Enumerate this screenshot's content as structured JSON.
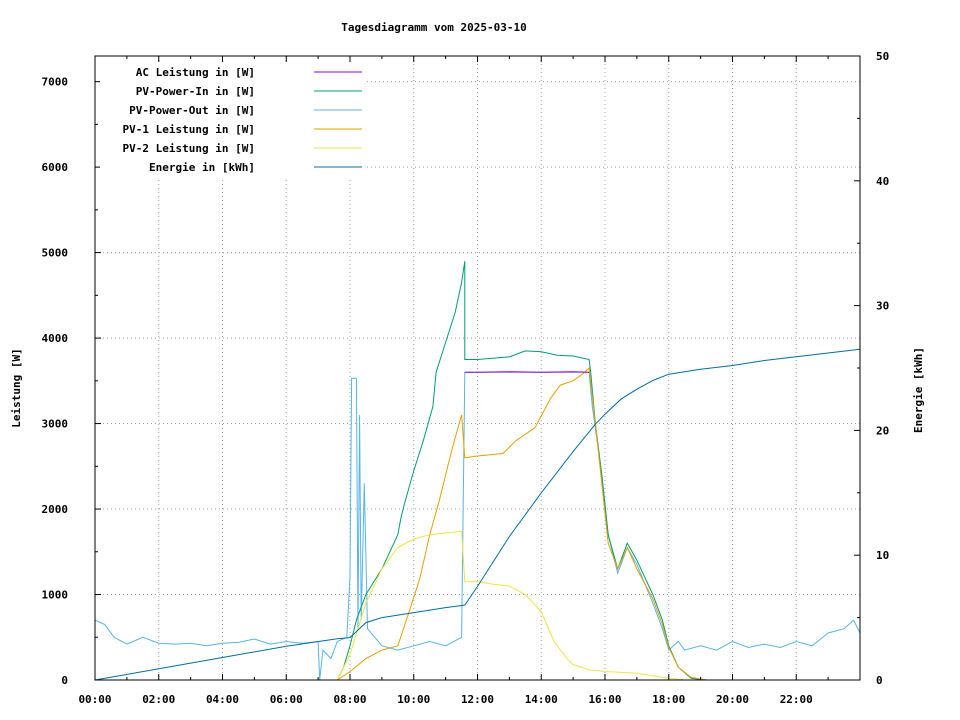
{
  "chart_data": {
    "type": "line",
    "title": "Tagesdiagramm vom 2025-03-10",
    "xlabel": "",
    "ylabel": "Leistung [W]",
    "y2label": "Energie [kWh]",
    "xlim": [
      0,
      24
    ],
    "ylim": [
      0,
      7300
    ],
    "y2lim": [
      0,
      50
    ],
    "grid": true,
    "legend_position": "top-left",
    "x_tick_labels": [
      "00:00",
      "02:00",
      "04:00",
      "06:00",
      "08:00",
      "10:00",
      "12:00",
      "14:00",
      "16:00",
      "18:00",
      "20:00",
      "22:00"
    ],
    "y_tick_labels": [
      "0",
      "1000",
      "2000",
      "3000",
      "4000",
      "5000",
      "6000",
      "7000"
    ],
    "y2_tick_labels": [
      "0",
      "10",
      "20",
      "30",
      "40",
      "50"
    ],
    "series": [
      {
        "name": "AC Leistung in [W]",
        "axis": "y1",
        "color": "#9400d3",
        "points": [
          [
            11.6,
            3600
          ],
          [
            12.0,
            3600
          ],
          [
            13.0,
            3605
          ],
          [
            14.0,
            3600
          ],
          [
            15.0,
            3605
          ],
          [
            15.5,
            3600
          ]
        ]
      },
      {
        "name": "PV-Power-In in [W]",
        "axis": "y1",
        "color": "#009e73",
        "points": [
          [
            7.6,
            0
          ],
          [
            7.8,
            150
          ],
          [
            8.0,
            400
          ],
          [
            8.2,
            700
          ],
          [
            8.5,
            1000
          ],
          [
            9.0,
            1300
          ],
          [
            9.5,
            1700
          ],
          [
            9.6,
            1900
          ],
          [
            9.7,
            2050
          ],
          [
            10.0,
            2450
          ],
          [
            10.3,
            2800
          ],
          [
            10.6,
            3200
          ],
          [
            10.7,
            3600
          ],
          [
            11.0,
            3950
          ],
          [
            11.3,
            4300
          ],
          [
            11.5,
            4650
          ],
          [
            11.6,
            4900
          ],
          [
            11.6,
            3750
          ],
          [
            12.0,
            3750
          ],
          [
            13.0,
            3780
          ],
          [
            13.5,
            3850
          ],
          [
            14.0,
            3840
          ],
          [
            14.5,
            3800
          ],
          [
            15.0,
            3790
          ],
          [
            15.5,
            3750
          ],
          [
            15.55,
            3600
          ],
          [
            15.7,
            3000
          ],
          [
            15.9,
            2400
          ],
          [
            16.1,
            1700
          ],
          [
            16.4,
            1300
          ],
          [
            16.7,
            1600
          ],
          [
            17.0,
            1400
          ],
          [
            17.5,
            1000
          ],
          [
            17.8,
            700
          ],
          [
            18.0,
            400
          ],
          [
            18.3,
            150
          ],
          [
            18.7,
            20
          ],
          [
            19.2,
            0
          ]
        ]
      },
      {
        "name": "PV-Power-Out in [W]",
        "axis": "y1",
        "color": "#56b4e9",
        "points": [
          [
            0,
            700
          ],
          [
            0.3,
            650
          ],
          [
            0.6,
            500
          ],
          [
            1.0,
            420
          ],
          [
            1.5,
            500
          ],
          [
            2.0,
            430
          ],
          [
            2.5,
            420
          ],
          [
            3.0,
            430
          ],
          [
            3.5,
            400
          ],
          [
            4.0,
            430
          ],
          [
            4.5,
            440
          ],
          [
            5.0,
            480
          ],
          [
            5.5,
            420
          ],
          [
            6.0,
            450
          ],
          [
            6.5,
            430
          ],
          [
            7.0,
            450
          ],
          [
            7.05,
            0
          ],
          [
            7.15,
            350
          ],
          [
            7.4,
            250
          ],
          [
            7.6,
            450
          ],
          [
            7.9,
            500
          ],
          [
            8.0,
            1200
          ],
          [
            8.05,
            3530
          ],
          [
            8.2,
            3530
          ],
          [
            8.25,
            600
          ],
          [
            8.3,
            3100
          ],
          [
            8.35,
            700
          ],
          [
            8.45,
            2300
          ],
          [
            8.55,
            600
          ],
          [
            9.0,
            400
          ],
          [
            9.5,
            350
          ],
          [
            10.0,
            400
          ],
          [
            10.5,
            450
          ],
          [
            11.0,
            400
          ],
          [
            11.5,
            500
          ],
          [
            11.6,
            3600
          ],
          [
            12.0,
            3600
          ],
          [
            13.0,
            3600
          ],
          [
            14.0,
            3600
          ],
          [
            15.0,
            3600
          ],
          [
            15.5,
            3600
          ],
          [
            15.6,
            3200
          ],
          [
            15.9,
            2400
          ],
          [
            16.1,
            1700
          ],
          [
            16.4,
            1250
          ],
          [
            16.7,
            1550
          ],
          [
            17.0,
            1350
          ],
          [
            17.5,
            900
          ],
          [
            17.8,
            600
          ],
          [
            18.0,
            350
          ],
          [
            18.3,
            450
          ],
          [
            18.5,
            350
          ],
          [
            19.0,
            400
          ],
          [
            19.5,
            350
          ],
          [
            20.0,
            450
          ],
          [
            20.5,
            380
          ],
          [
            21.0,
            420
          ],
          [
            21.5,
            380
          ],
          [
            22.0,
            450
          ],
          [
            22.5,
            400
          ],
          [
            23.0,
            550
          ],
          [
            23.5,
            600
          ],
          [
            23.8,
            700
          ],
          [
            24.0,
            550
          ]
        ]
      },
      {
        "name": "PV-1 Leistung in [W]",
        "axis": "y1",
        "color": "#e69f00",
        "points": [
          [
            7.6,
            0
          ],
          [
            8.0,
            100
          ],
          [
            8.5,
            250
          ],
          [
            9.0,
            350
          ],
          [
            9.5,
            400
          ],
          [
            9.9,
            850
          ],
          [
            10.2,
            1200
          ],
          [
            10.5,
            1700
          ],
          [
            10.8,
            2100
          ],
          [
            11.2,
            2700
          ],
          [
            11.5,
            3100
          ],
          [
            11.6,
            2600
          ],
          [
            12.0,
            2620
          ],
          [
            12.8,
            2650
          ],
          [
            13.2,
            2800
          ],
          [
            13.8,
            2950
          ],
          [
            14.3,
            3300
          ],
          [
            14.6,
            3450
          ],
          [
            15.0,
            3500
          ],
          [
            15.3,
            3580
          ],
          [
            15.5,
            3650
          ],
          [
            15.7,
            3000
          ],
          [
            15.9,
            2300
          ],
          [
            16.1,
            1600
          ],
          [
            16.4,
            1300
          ],
          [
            16.7,
            1550
          ],
          [
            17.0,
            1300
          ],
          [
            17.5,
            950
          ],
          [
            17.8,
            650
          ],
          [
            18.0,
            380
          ],
          [
            18.3,
            150
          ],
          [
            18.7,
            30
          ],
          [
            19.2,
            0
          ]
        ]
      },
      {
        "name": "PV-2 Leistung in [W]",
        "axis": "y1",
        "color": "#f0e442",
        "points": [
          [
            7.6,
            0
          ],
          [
            8.0,
            300
          ],
          [
            8.5,
            900
          ],
          [
            9.0,
            1300
          ],
          [
            9.5,
            1550
          ],
          [
            10.0,
            1650
          ],
          [
            10.5,
            1700
          ],
          [
            11.0,
            1720
          ],
          [
            11.5,
            1740
          ],
          [
            11.6,
            1150
          ],
          [
            12.0,
            1150
          ],
          [
            12.5,
            1120
          ],
          [
            13.0,
            1100
          ],
          [
            13.5,
            1000
          ],
          [
            14.0,
            800
          ],
          [
            14.4,
            450
          ],
          [
            14.8,
            250
          ],
          [
            15.0,
            180
          ],
          [
            15.5,
            120
          ],
          [
            16.0,
            100
          ],
          [
            17.0,
            80
          ],
          [
            17.5,
            50
          ],
          [
            18.0,
            20
          ],
          [
            18.5,
            0
          ]
        ]
      },
      {
        "name": "Energie in [kWh]",
        "axis": "y2",
        "color": "#006fa0",
        "points": [
          [
            0,
            0
          ],
          [
            2.0,
            0.9
          ],
          [
            4.0,
            1.8
          ],
          [
            6.0,
            2.7
          ],
          [
            7.6,
            3.3
          ],
          [
            8.0,
            3.4
          ],
          [
            8.5,
            4.6
          ],
          [
            9.0,
            5.0
          ],
          [
            10.0,
            5.4
          ],
          [
            11.0,
            5.8
          ],
          [
            11.6,
            6.0
          ],
          [
            12.0,
            7.5
          ],
          [
            13.0,
            11.5
          ],
          [
            14.0,
            15.0
          ],
          [
            15.0,
            18.3
          ],
          [
            15.7,
            20.5
          ],
          [
            16.0,
            21.3
          ],
          [
            16.5,
            22.5
          ],
          [
            17.0,
            23.3
          ],
          [
            17.5,
            24.0
          ],
          [
            18.0,
            24.5
          ],
          [
            19.0,
            24.9
          ],
          [
            20.0,
            25.2
          ],
          [
            21.0,
            25.6
          ],
          [
            22.0,
            25.9
          ],
          [
            23.0,
            26.2
          ],
          [
            24.0,
            26.5
          ]
        ]
      }
    ]
  }
}
